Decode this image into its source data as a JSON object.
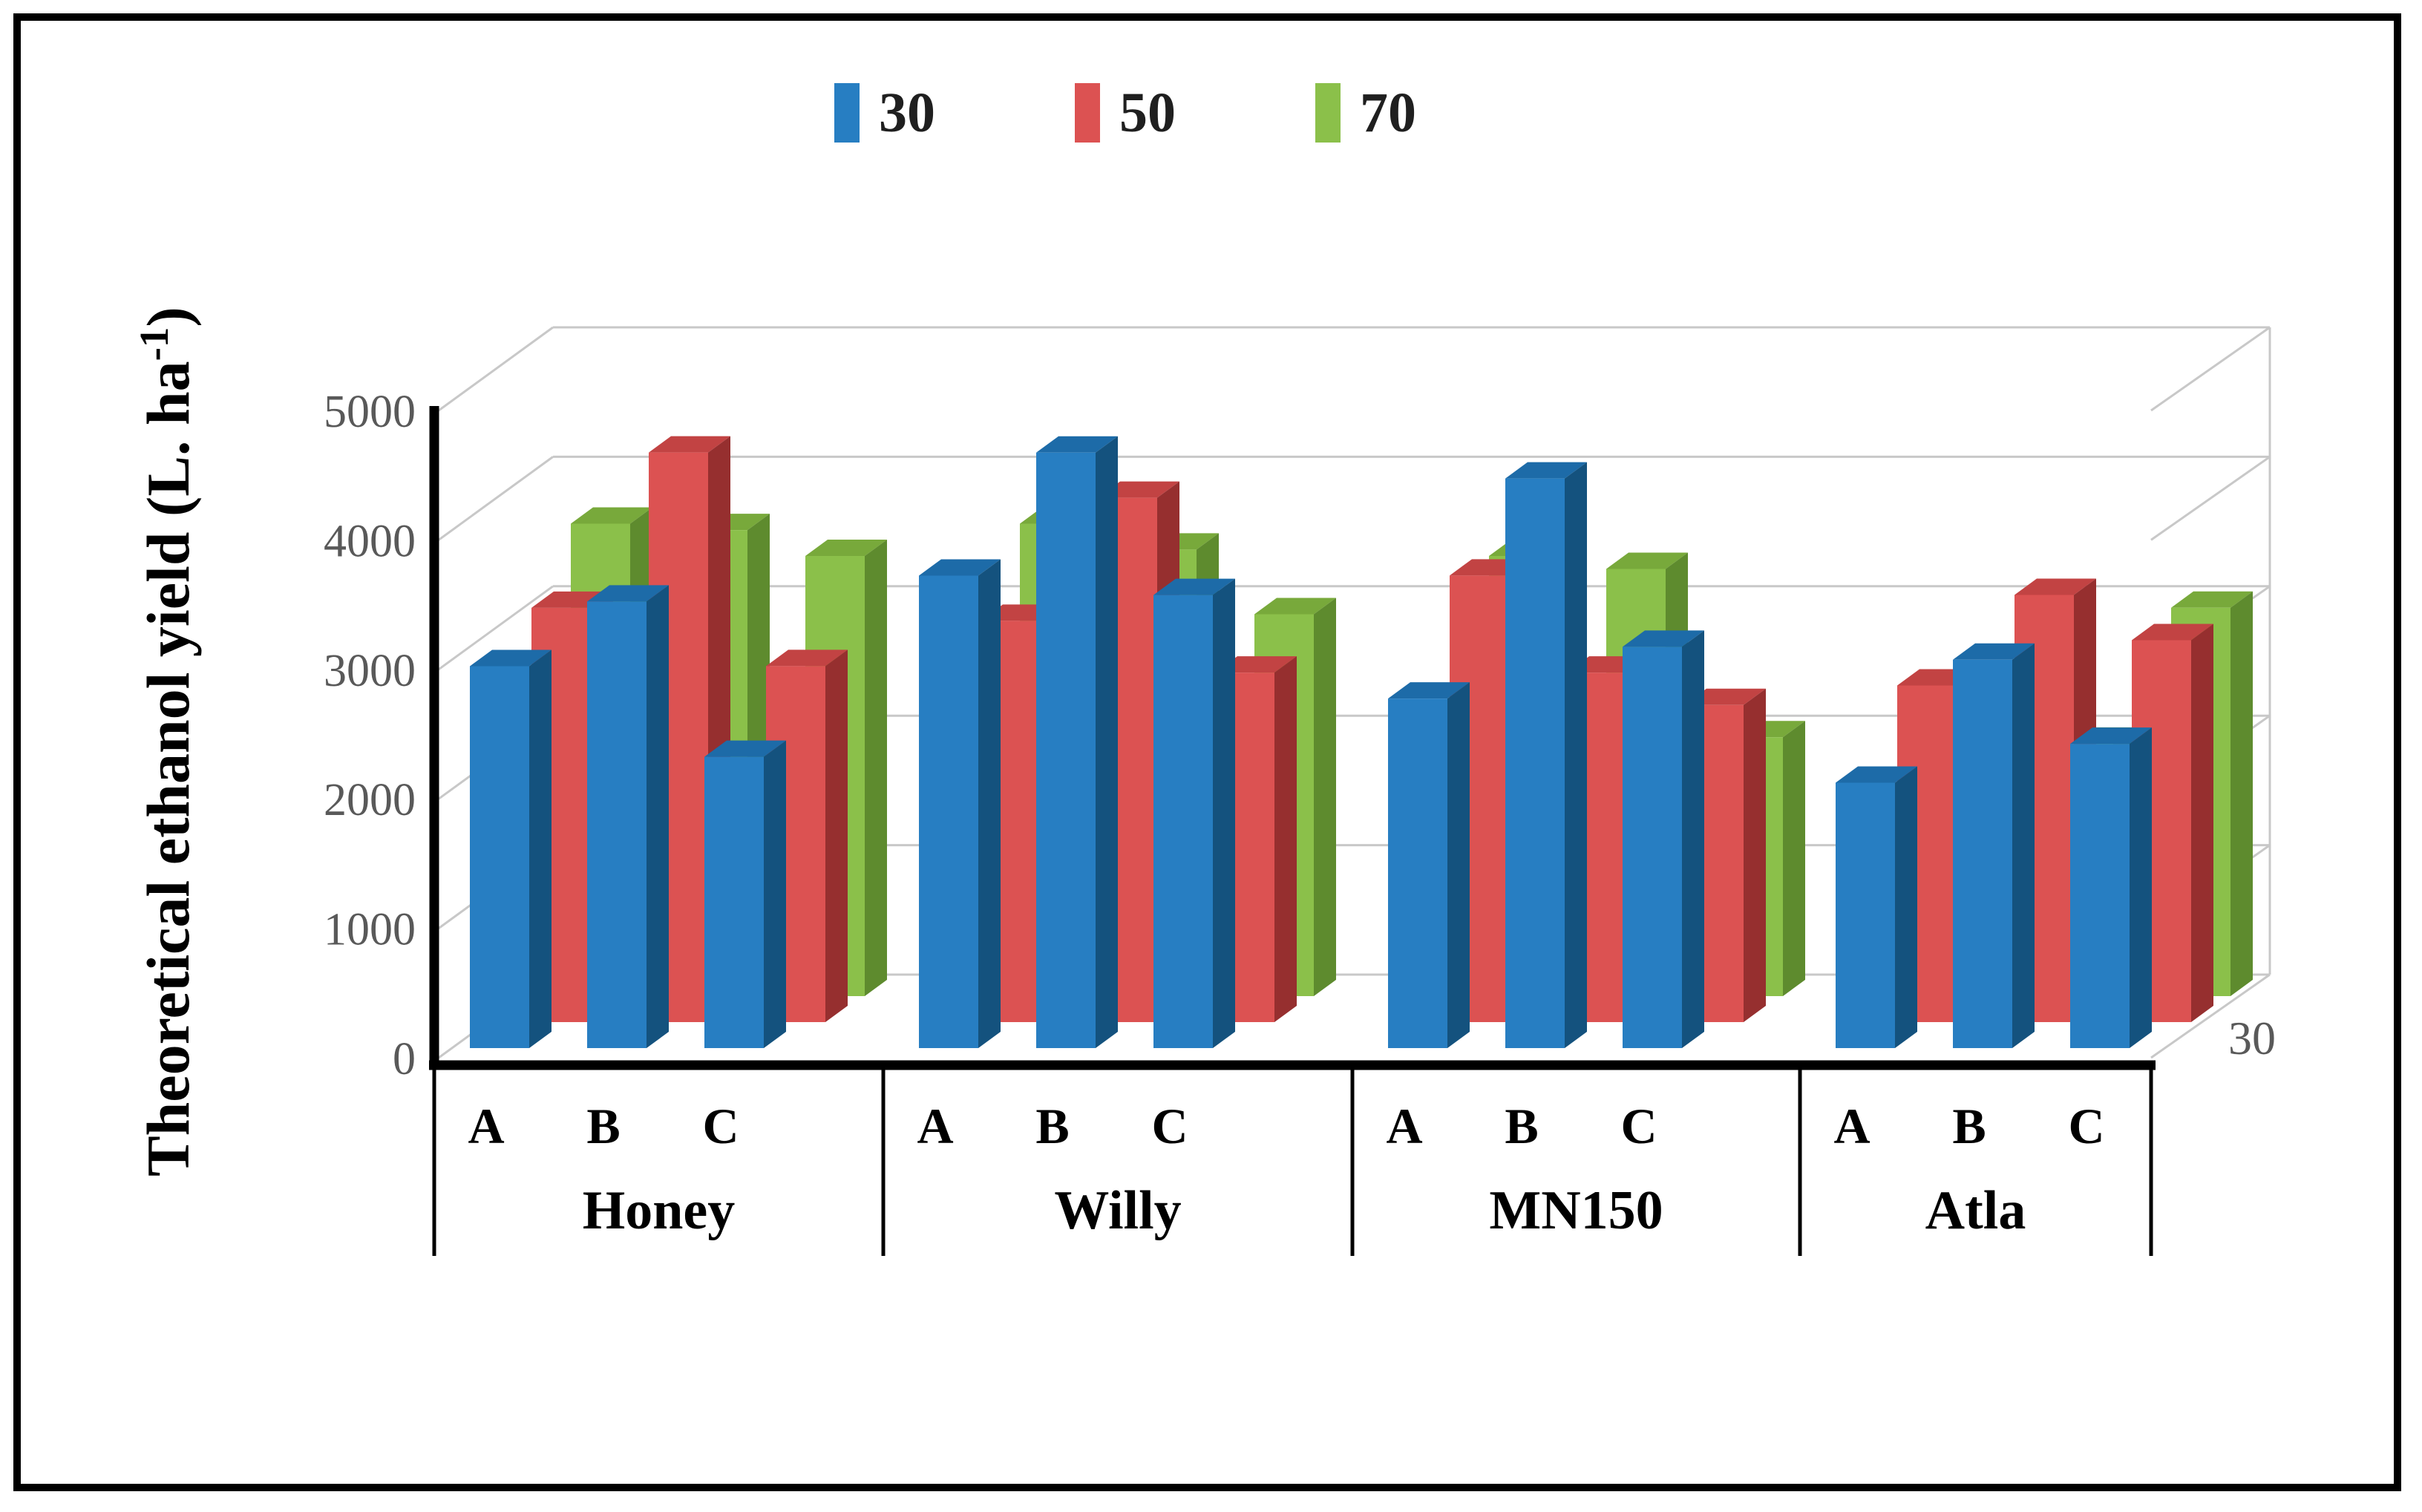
{
  "chart_data": {
    "type": "bar",
    "variant": "3d-clustered-column",
    "title": "",
    "ylabel_main": "Theoretical ethanol yield (L. ha",
    "ylabel_sup": "-1",
    "ylabel_end": ")",
    "ylim": [
      0,
      5000
    ],
    "yticks": [
      0,
      1000,
      2000,
      3000,
      4000,
      5000
    ],
    "grid": true,
    "legend_position": "top",
    "depth_axis_label": "30",
    "group_labels": [
      "Honey",
      "Willy",
      "MN150",
      "Atla"
    ],
    "category_labels": [
      "A",
      "B",
      "C"
    ],
    "series": [
      {
        "name": "30",
        "color": "#277EC2",
        "top_color": "#1D6BA8",
        "side_color": "#14527E",
        "values": [
          [
            2950,
            3450,
            2250
          ],
          [
            3650,
            4600,
            3500
          ],
          [
            2700,
            4400,
            3100
          ],
          [
            2050,
            3000,
            2350
          ]
        ]
      },
      {
        "name": "50",
        "color": "#DC5252",
        "top_color": "#C24343",
        "side_color": "#962F2F",
        "values": [
          [
            3200,
            4400,
            2750
          ],
          [
            3100,
            4050,
            2700
          ],
          [
            3450,
            2700,
            2450
          ],
          [
            2600,
            3300,
            2950
          ]
        ]
      },
      {
        "name": "70",
        "color": "#8BC04A",
        "top_color": "#78A93B",
        "side_color": "#5E8B2E",
        "values": [
          [
            3650,
            3600,
            3400
          ],
          [
            3650,
            3450,
            2950
          ],
          [
            3400,
            3300,
            2000
          ],
          [
            2150,
            1950,
            3000
          ]
        ]
      }
    ]
  },
  "colors": {
    "background": "#FFFFFF",
    "border": "#000000",
    "axis": "#000000",
    "grid": "#C8C8C8",
    "tick_text": "#595959",
    "depth_label_text": "#595959",
    "legend_text": "#1F1F1F",
    "label_text": "#000000"
  }
}
